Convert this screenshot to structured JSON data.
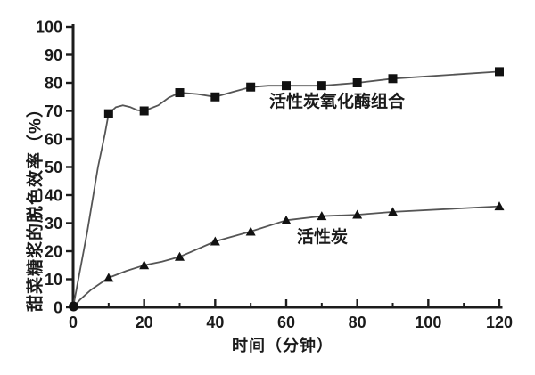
{
  "figure": {
    "background": "#ffffff",
    "axis_color": "#1c1c1c",
    "text_color": "#1a1a1a",
    "line_color": "#555555",
    "marker_color": "#111111"
  },
  "chart_data": {
    "type": "line",
    "title": "",
    "xlabel": "时间（分钟）",
    "ylabel": "甜菜糖浆的脱色效率（%）",
    "xlim": [
      0,
      120
    ],
    "ylim": [
      0,
      100
    ],
    "x_major_ticks": [
      0,
      20,
      40,
      60,
      80,
      100,
      120
    ],
    "x_minor_ticks": [
      10,
      30,
      50,
      70,
      90,
      110
    ],
    "y_ticks": [
      0,
      10,
      20,
      30,
      40,
      50,
      60,
      70,
      80,
      90,
      100
    ],
    "grid": false,
    "legend_position": "inline text annotations beside each curve",
    "series": [
      {
        "name": "活性炭氧化酶组合",
        "marker": "square",
        "x": [
          0,
          10,
          20,
          30,
          40,
          50,
          60,
          70,
          80,
          90,
          120
        ],
        "y": [
          0,
          69,
          70,
          76.5,
          75,
          78.5,
          79,
          79,
          80,
          81.5,
          84
        ],
        "curve_x": [
          0,
          4,
          7,
          9,
          10,
          12,
          14,
          16,
          18,
          20,
          24,
          27,
          30,
          35,
          40,
          45,
          50,
          55,
          60,
          70,
          80,
          90,
          120
        ],
        "curve_y": [
          0,
          27,
          50,
          62,
          69,
          71.3,
          72,
          71.4,
          70.3,
          70,
          72,
          74.8,
          76.5,
          76,
          75,
          76.8,
          78.5,
          79,
          79,
          79,
          80,
          81.5,
          84
        ]
      },
      {
        "name": "活性炭",
        "marker": "triangle-up",
        "x": [
          0,
          10,
          20,
          30,
          40,
          50,
          60,
          70,
          80,
          90,
          120
        ],
        "y": [
          0,
          10.5,
          15,
          18,
          23.5,
          27,
          31,
          32.5,
          33,
          34,
          36
        ],
        "curve_x": [
          0,
          2,
          5,
          8,
          10,
          15,
          20,
          25,
          30,
          40,
          50,
          60,
          70,
          80,
          90,
          120
        ],
        "curve_y": [
          0,
          2.8,
          6.2,
          8.8,
          10.5,
          13,
          15,
          16.3,
          18,
          23.5,
          27,
          31,
          32.5,
          33,
          34,
          36
        ]
      }
    ]
  }
}
